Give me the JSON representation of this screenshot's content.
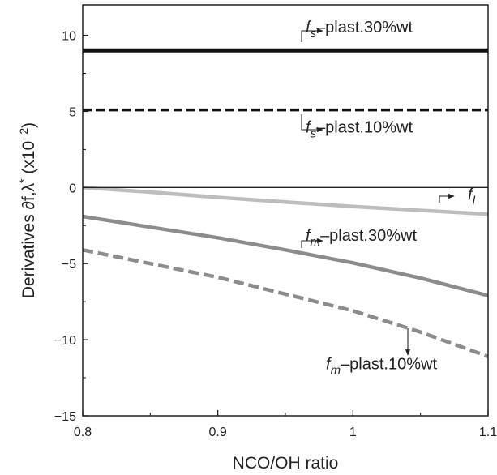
{
  "chart_data": {
    "type": "line",
    "xlabel": "NCO/OH ratio",
    "ylabel": "Derivatives ∂f,λ* (x10⁻²)",
    "ylabel_parts": {
      "main": "Derivatives ∂f,λ",
      "sup1": "*",
      "open": " (x10",
      "sup2": "−2",
      "close": ")"
    },
    "xlim": [
      0.8,
      1.1
    ],
    "ylim": [
      -15,
      12
    ],
    "xticks": [
      0.8,
      0.9,
      1.0,
      1.1
    ],
    "xtick_labels": [
      "0.8",
      "0.9",
      "1",
      "1.1"
    ],
    "yticks": [
      -15,
      -10,
      -5,
      0,
      5,
      10
    ],
    "ytick_labels": [
      "−15",
      "−10",
      "−5",
      "0",
      "5",
      "10"
    ],
    "zero_line": true,
    "grid": false,
    "series": [
      {
        "x": [
          0.8,
          1.1
        ],
        "y": [
          9.0,
          9.0
        ],
        "color": "#111111",
        "style": "solid",
        "width": 5
      },
      {
        "x": [
          0.8,
          1.1
        ],
        "y": [
          5.1,
          5.1
        ],
        "color": "#111111",
        "style": "dashed",
        "width": 3.5
      },
      {
        "x": [
          0.8,
          0.85,
          0.9,
          0.95,
          1.0,
          1.05,
          1.1
        ],
        "y": [
          0.0,
          -0.3,
          -0.65,
          -0.95,
          -1.25,
          -1.5,
          -1.75
        ],
        "color": "#bdbdbd",
        "style": "solid",
        "width": 4.5
      },
      {
        "x": [
          0.8,
          0.85,
          0.9,
          0.95,
          1.0,
          1.05,
          1.1
        ],
        "y": [
          -1.9,
          -2.6,
          -3.3,
          -4.1,
          -4.95,
          -5.95,
          -7.1
        ],
        "color": "#8c8c8c",
        "style": "solid",
        "width": 4.5
      },
      {
        "x": [
          0.8,
          0.85,
          0.9,
          0.95,
          1.0,
          1.05,
          1.1
        ],
        "y": [
          -4.1,
          -5.0,
          -5.9,
          -7.0,
          -8.1,
          -9.5,
          -11.1
        ],
        "color": "#8c8c8c",
        "style": "dashed",
        "width": 4.5
      }
    ],
    "annotations": [
      {
        "sym": "f",
        "sub": "s",
        "text": "–plast.30%wt",
        "x": 0.965,
        "y": 10.2
      },
      {
        "sym": "f",
        "sub": "s",
        "text": "–plast.10%wt",
        "x": 0.965,
        "y": 3.6
      },
      {
        "sym": "f",
        "sub": "l",
        "text": "",
        "x": 1.085,
        "y": -0.8
      },
      {
        "sym": "f",
        "sub": "m",
        "text": "–plast.30%wt",
        "x": 0.965,
        "y": -3.5
      },
      {
        "sym": "f",
        "sub": "m",
        "text": "–plast.10%wt",
        "x": 0.98,
        "y": -11.95
      }
    ]
  }
}
